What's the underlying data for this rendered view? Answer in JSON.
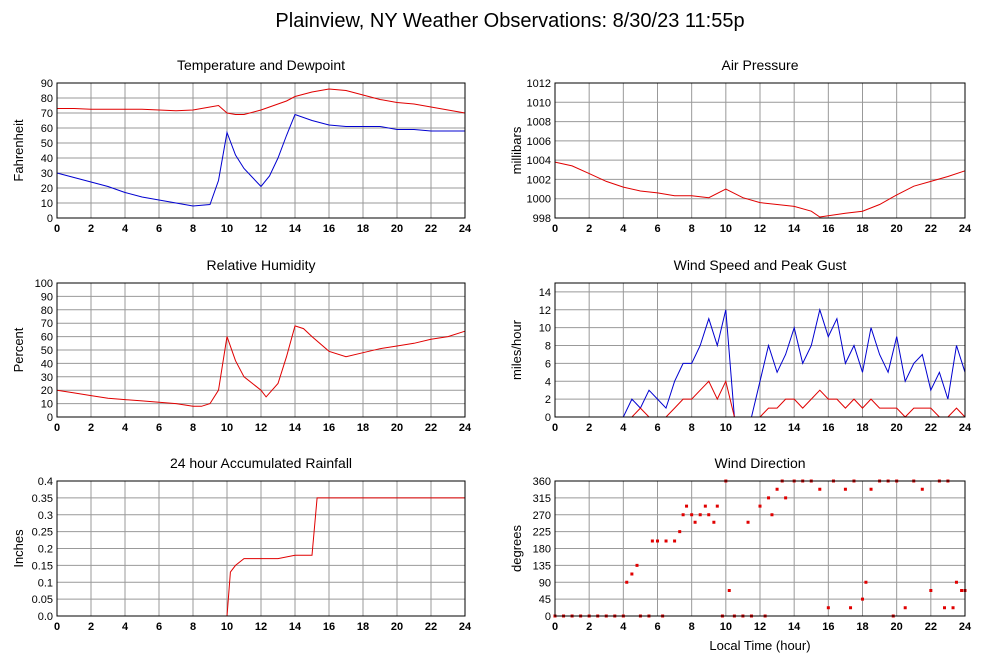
{
  "title": "Plainview, NY Weather Observations: 8/30/23 11:55p",
  "chart_data": [
    {
      "type": "line",
      "title": "Temperature and Dewpoint",
      "ylabel": "Fahrenheit",
      "x": [
        0,
        1,
        2,
        3,
        4,
        5,
        6,
        7,
        8,
        9,
        9.5,
        10,
        10.5,
        11,
        12,
        12.5,
        13,
        13.5,
        14,
        15,
        16,
        17,
        18,
        19,
        20,
        21,
        22,
        23,
        24
      ],
      "series": [
        {
          "color": "#e00000",
          "values": [
            73,
            73,
            72.5,
            72.5,
            72.5,
            72.5,
            72,
            71.5,
            72,
            74,
            75,
            70,
            69,
            69,
            72,
            74,
            76,
            78,
            81,
            84,
            86,
            85,
            82,
            79,
            77,
            76,
            74,
            72,
            70
          ]
        },
        {
          "color": "#0000d0",
          "values": [
            30,
            27,
            24,
            21,
            17,
            14,
            12,
            10,
            8,
            9,
            25,
            57,
            42,
            33,
            21,
            28,
            40,
            55,
            69,
            65,
            62,
            61,
            61,
            61,
            59,
            59,
            58,
            58,
            58
          ]
        }
      ],
      "xlim": [
        0,
        24
      ],
      "xticks": [
        0,
        2,
        4,
        6,
        8,
        10,
        12,
        14,
        16,
        18,
        20,
        22,
        24
      ],
      "ylim": [
        0,
        90
      ],
      "yticks": [
        0,
        10,
        20,
        30,
        40,
        50,
        60,
        70,
        80,
        90
      ],
      "grid": true
    },
    {
      "type": "line",
      "title": "Air Pressure",
      "ylabel": "millibars",
      "x": [
        0,
        1,
        2,
        3,
        4,
        5,
        6,
        7,
        8,
        9,
        10,
        11,
        12,
        13,
        14,
        15,
        15.5,
        17,
        18,
        19,
        20,
        21,
        22,
        23,
        24
      ],
      "series": [
        {
          "color": "#e00000",
          "values": [
            1003.8,
            1003.4,
            1002.6,
            1001.8,
            1001.2,
            1000.8,
            1000.6,
            1000.3,
            1000.3,
            1000.1,
            1001.0,
            1000.1,
            999.6,
            999.4,
            999.2,
            998.7,
            998.1,
            998.5,
            998.7,
            999.4,
            1000.4,
            1001.3,
            1001.8,
            1002.3,
            1002.9
          ]
        }
      ],
      "xlim": [
        0,
        24
      ],
      "xticks": [
        0,
        2,
        4,
        6,
        8,
        10,
        12,
        14,
        16,
        18,
        20,
        22,
        24
      ],
      "ylim": [
        998,
        1012
      ],
      "yticks": [
        998,
        1000,
        1002,
        1004,
        1006,
        1008,
        1010,
        1012
      ],
      "grid": true
    },
    {
      "type": "line",
      "title": "Relative Humidity",
      "ylabel": "Percent",
      "x": [
        0,
        1,
        2,
        3,
        4,
        5,
        6,
        7,
        8,
        8.5,
        9,
        9.5,
        10,
        10.5,
        11,
        12,
        12.3,
        13,
        13.5,
        14,
        14.5,
        15,
        16,
        17,
        18,
        19,
        20,
        21,
        22,
        23,
        24
      ],
      "series": [
        {
          "color": "#e00000",
          "values": [
            20,
            18,
            16,
            14,
            13,
            12,
            11,
            10,
            8,
            8,
            10,
            20,
            60,
            42,
            30,
            20,
            15,
            25,
            45,
            68,
            66,
            60,
            49,
            45,
            48,
            51,
            53,
            55,
            58,
            60,
            64
          ]
        }
      ],
      "xlim": [
        0,
        24
      ],
      "xticks": [
        0,
        2,
        4,
        6,
        8,
        10,
        12,
        14,
        16,
        18,
        20,
        22,
        24
      ],
      "ylim": [
        0,
        100
      ],
      "yticks": [
        0,
        10,
        20,
        30,
        40,
        50,
        60,
        70,
        80,
        90,
        100
      ],
      "grid": true
    },
    {
      "type": "line",
      "title": "Wind Speed and Peak Gust",
      "ylabel": "miles/hour",
      "x": [
        0,
        0.5,
        1,
        1.5,
        2,
        2.5,
        3,
        3.5,
        4,
        4.5,
        5,
        5.5,
        6,
        6.5,
        7,
        7.5,
        8,
        8.5,
        9,
        9.5,
        10,
        10.5,
        11,
        11.5,
        12,
        12.5,
        13,
        13.5,
        14,
        14.5,
        15,
        15.5,
        16,
        16.5,
        17,
        17.5,
        18,
        18.5,
        19,
        19.5,
        20,
        20.5,
        21,
        21.5,
        22,
        22.5,
        23,
        23.5,
        24
      ],
      "series": [
        {
          "color": "#0000d0",
          "values": [
            0,
            0,
            0,
            0,
            0,
            0,
            0,
            0,
            0,
            2,
            1,
            3,
            2,
            1,
            4,
            6,
            6,
            8,
            11,
            8,
            12,
            0,
            0,
            0,
            4,
            8,
            5,
            7,
            10,
            6,
            8,
            12,
            9,
            11,
            6,
            8,
            5,
            10,
            7,
            5,
            9,
            4,
            6,
            7,
            3,
            5,
            2,
            8,
            5
          ]
        },
        {
          "color": "#e00000",
          "values": [
            0,
            0,
            0,
            0,
            0,
            0,
            0,
            0,
            0,
            0,
            1,
            0,
            0,
            0,
            1,
            2,
            2,
            3,
            4,
            2,
            4,
            0,
            0,
            0,
            0,
            1,
            1,
            2,
            2,
            1,
            2,
            3,
            2,
            2,
            1,
            2,
            1,
            2,
            1,
            1,
            1,
            0,
            1,
            1,
            1,
            0,
            0,
            1,
            0
          ]
        }
      ],
      "xlim": [
        0,
        24
      ],
      "xticks": [
        0,
        2,
        4,
        6,
        8,
        10,
        12,
        14,
        16,
        18,
        20,
        22,
        24
      ],
      "ylim": [
        0,
        15
      ],
      "yticks": [
        0,
        2,
        4,
        6,
        8,
        10,
        12,
        14
      ],
      "grid": true
    },
    {
      "type": "line",
      "title": "24 hour Accumulated Rainfall",
      "ylabel": "Inches",
      "x": [
        0,
        10,
        10.2,
        10.5,
        11,
        12,
        13,
        14,
        15,
        15.3,
        24
      ],
      "series": [
        {
          "color": "#e00000",
          "values": [
            0,
            0,
            0.13,
            0.15,
            0.17,
            0.17,
            0.17,
            0.18,
            0.18,
            0.35,
            0.35
          ]
        }
      ],
      "xlim": [
        0,
        24
      ],
      "xticks": [
        0,
        2,
        4,
        6,
        8,
        10,
        12,
        14,
        16,
        18,
        20,
        22,
        24
      ],
      "ylim": [
        0,
        0.4
      ],
      "yticks": [
        {
          "value": 0,
          "label": "0.0"
        },
        0.05,
        0.1,
        0.15,
        0.2,
        0.25,
        0.3,
        0.35,
        0.4
      ],
      "grid": true
    },
    {
      "type": "scatter",
      "title": "Wind Direction",
      "ylabel": "degrees",
      "xlabel": "Local Time (hour)",
      "color": "#e00000",
      "x": [
        0,
        0.5,
        1,
        1.5,
        2,
        2.5,
        3,
        3.5,
        4,
        4.2,
        4.5,
        4.8,
        5,
        5.5,
        5.7,
        6,
        6.3,
        6.5,
        7,
        7.3,
        7.5,
        7.7,
        8,
        8.2,
        8.5,
        8.8,
        9,
        9.3,
        9.5,
        9.8,
        10,
        10.2,
        10.5,
        11,
        11.3,
        11.5,
        12,
        12.3,
        12.5,
        12.7,
        13,
        13.3,
        13.5,
        14,
        14.5,
        15,
        15.5,
        16,
        16.3,
        17,
        17.3,
        17.5,
        18,
        18.2,
        18.5,
        19,
        19.5,
        19.8,
        20,
        20.5,
        21,
        21.5,
        22,
        22.5,
        22.8,
        23,
        23.3,
        23.5,
        23.8,
        24
      ],
      "values": [
        0,
        0,
        0,
        0,
        0,
        0,
        0,
        0,
        0,
        90,
        112,
        135,
        0,
        0,
        200,
        200,
        0,
        200,
        200,
        225,
        270,
        293,
        270,
        250,
        270,
        293,
        270,
        250,
        293,
        0,
        360,
        68,
        0,
        0,
        250,
        0,
        293,
        0,
        315,
        270,
        338,
        360,
        315,
        360,
        360,
        360,
        338,
        22,
        360,
        338,
        22,
        360,
        45,
        90,
        338,
        360,
        360,
        0,
        360,
        22,
        360,
        338,
        68,
        360,
        22,
        360,
        22,
        90,
        68,
        68
      ],
      "xlim": [
        0,
        24
      ],
      "xticks": [
        0,
        2,
        4,
        6,
        8,
        10,
        12,
        14,
        16,
        18,
        20,
        22,
        24
      ],
      "ylim": [
        0,
        360
      ],
      "yticks": [
        0,
        45,
        90,
        135,
        180,
        225,
        270,
        315,
        360
      ],
      "grid": true
    }
  ]
}
